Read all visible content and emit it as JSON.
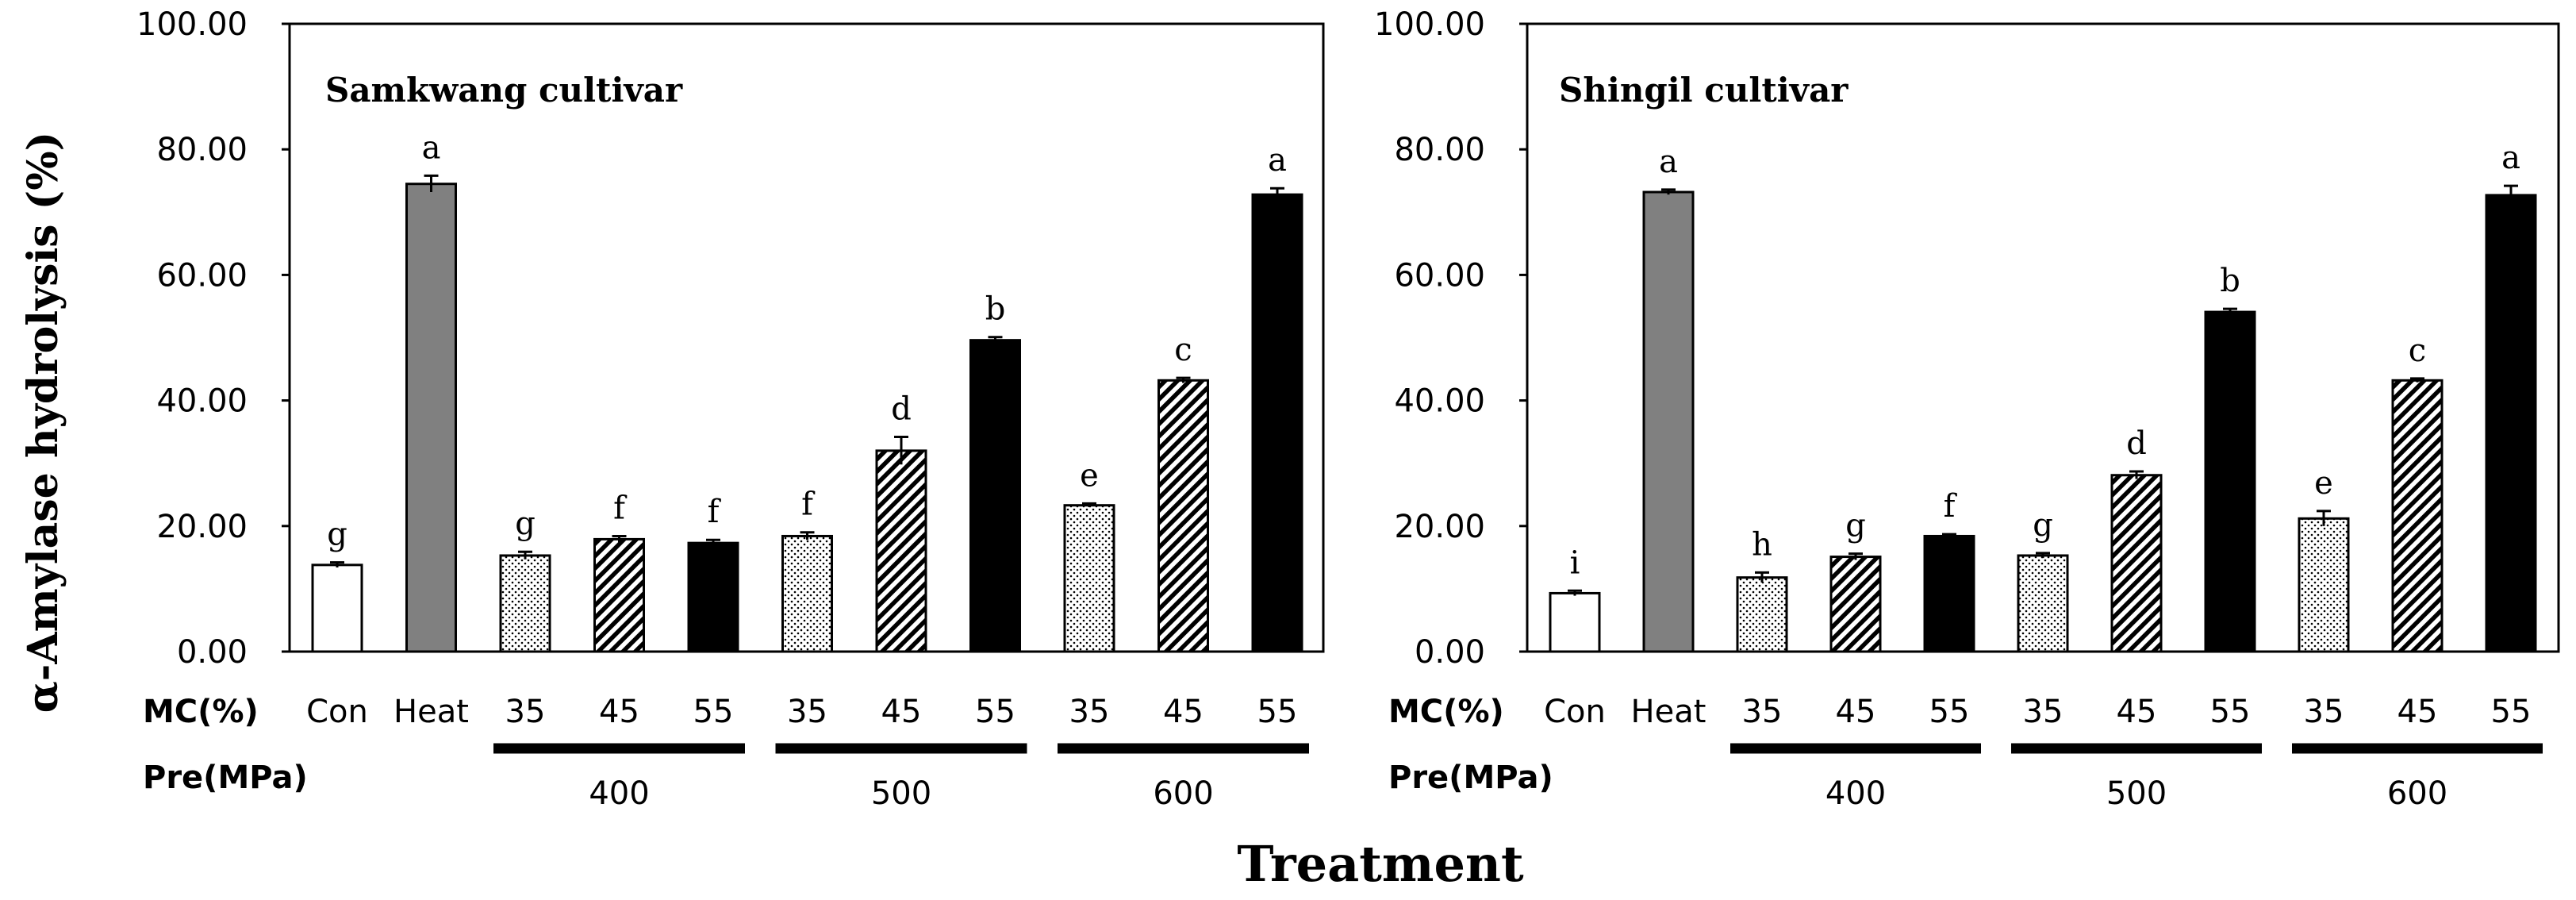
{
  "figure": {
    "y_axis_label": "α-Amylase hydrolysis (%)",
    "x_axis_label": "Treatment",
    "mc_row_label": "MC(%)",
    "pre_row_label": "Pre(MPa)"
  },
  "chart_data": [
    {
      "type": "bar",
      "title": "Samkwang cultivar",
      "xlabel": "Treatment",
      "ylabel": "α-Amylase hydrolysis (%)",
      "ylim": [
        0,
        100
      ],
      "yticks": [
        "0.00",
        "20.00",
        "40.00",
        "60.00",
        "80.00",
        "100.00"
      ],
      "categories": [
        "Con",
        "Heat",
        "35",
        "45",
        "55",
        "35",
        "45",
        "55",
        "35",
        "45",
        "55"
      ],
      "pressure_groups": [
        {
          "label": "400",
          "members": [
            2,
            3,
            4
          ]
        },
        {
          "label": "500",
          "members": [
            5,
            6,
            7
          ]
        },
        {
          "label": "600",
          "members": [
            8,
            9,
            10
          ]
        }
      ],
      "patterns": [
        "white",
        "gray",
        "dots",
        "hatch",
        "black",
        "dots",
        "hatch",
        "black",
        "dots",
        "hatch",
        "black"
      ],
      "values": [
        13.8,
        74.5,
        15.3,
        17.9,
        17.3,
        18.4,
        32.0,
        49.6,
        23.3,
        43.2,
        72.8
      ],
      "errors": [
        0.4,
        1.3,
        0.6,
        0.5,
        0.5,
        0.6,
        2.2,
        0.5,
        0.3,
        0.4,
        1.0
      ],
      "significance_labels": [
        "g",
        "a",
        "g",
        "f",
        "f",
        "f",
        "d",
        "b",
        "e",
        "c",
        "a"
      ]
    },
    {
      "type": "bar",
      "title": "Shingil cultivar",
      "xlabel": "Treatment",
      "ylabel": "α-Amylase hydrolysis (%)",
      "ylim": [
        0,
        100
      ],
      "yticks": [
        "0.00",
        "20.00",
        "40.00",
        "60.00",
        "80.00",
        "100.00"
      ],
      "categories": [
        "Con",
        "Heat",
        "35",
        "45",
        "55",
        "35",
        "45",
        "55",
        "35",
        "45",
        "55"
      ],
      "pressure_groups": [
        {
          "label": "400",
          "members": [
            2,
            3,
            4
          ]
        },
        {
          "label": "500",
          "members": [
            5,
            6,
            7
          ]
        },
        {
          "label": "600",
          "members": [
            8,
            9,
            10
          ]
        }
      ],
      "patterns": [
        "white",
        "gray",
        "dots",
        "hatch",
        "black",
        "dots",
        "hatch",
        "black",
        "dots",
        "hatch",
        "black"
      ],
      "values": [
        9.3,
        73.2,
        11.8,
        15.1,
        18.4,
        15.3,
        28.1,
        54.1,
        21.2,
        43.2,
        72.7
      ],
      "errors": [
        0.4,
        0.4,
        0.8,
        0.5,
        0.3,
        0.4,
        0.6,
        0.5,
        1.2,
        0.3,
        1.5
      ],
      "significance_labels": [
        "i",
        "a",
        "h",
        "g",
        "f",
        "g",
        "d",
        "b",
        "e",
        "c",
        "a"
      ]
    }
  ],
  "colors": {
    "axis": "#000000",
    "bar_gray": "#808080",
    "bar_black": "#000000",
    "bar_white": "#ffffff"
  }
}
